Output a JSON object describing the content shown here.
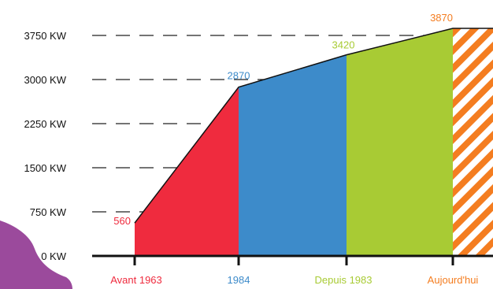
{
  "chart_data": {
    "type": "area",
    "title": "",
    "xlabel": "",
    "ylabel": "",
    "y_unit": "KW",
    "ylim": [
      0,
      3870
    ],
    "y_ticks": [
      "0 KW",
      "750 KW",
      "1500 KW",
      "2250 KW",
      "3000 KW",
      "3750 KW"
    ],
    "y_tick_values": [
      0,
      750,
      1500,
      2250,
      3000,
      3750
    ],
    "grid": "dashed horizontal lines",
    "categories": [
      "Avant 1963",
      "1984",
      "Depuis 1983",
      "Aujourd'hui"
    ],
    "category_colors": [
      "#ef2b3e",
      "#3d8bca",
      "#a8cb34",
      "#f47d20"
    ],
    "points": [
      {
        "label": "560",
        "value": 560,
        "color": "#ef2b3e"
      },
      {
        "label": "2870",
        "value": 2870,
        "color": "#3d8bca"
      },
      {
        "label": "3420",
        "value": 3420,
        "color": "#a8cb34"
      },
      {
        "label": "3870",
        "value": 3870,
        "color": "#f47d20"
      }
    ],
    "segments": [
      {
        "name": "Avant 1963",
        "from": 560,
        "to": 2870,
        "color": "#ef2b3e"
      },
      {
        "name": "1984",
        "from": 2870,
        "to": 3420,
        "color": "#3d8bca"
      },
      {
        "name": "Depuis 1983",
        "from": 3420,
        "to": 3870,
        "color": "#a8cb34"
      },
      {
        "name": "Aujourd'hui",
        "from": 3870,
        "to": 3870,
        "color": "#f47d20",
        "pattern": "hatched"
      }
    ],
    "decoration_color": "#9b4a9c"
  }
}
